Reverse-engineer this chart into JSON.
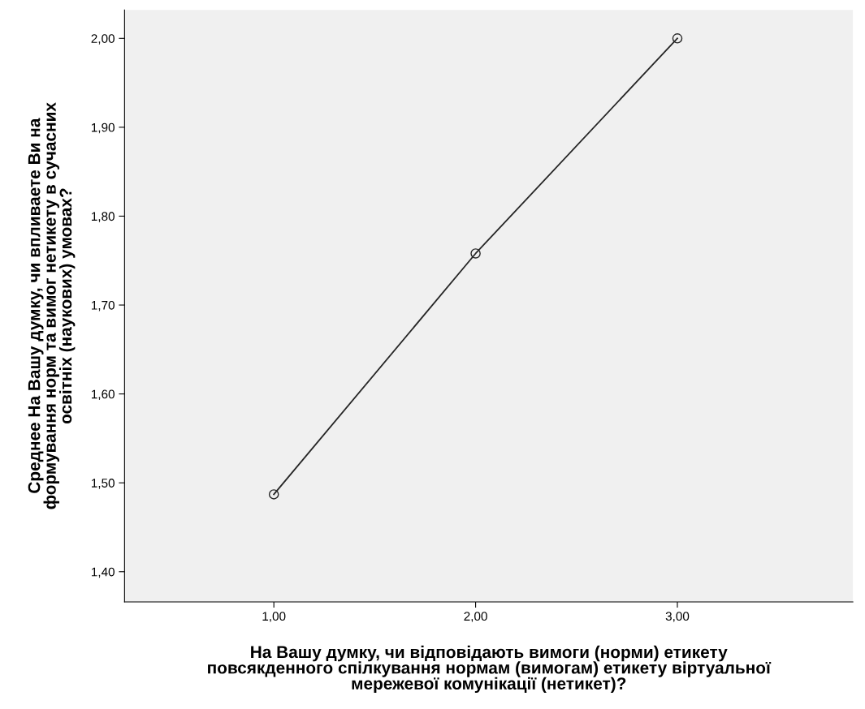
{
  "chart_data": {
    "type": "line",
    "xlabel": "На Вашу думку, чи відповідають вимоги (норми) етикету\nповсякденного спілкування нормам (вимогам) етикету віртуальної\nмережевої комунікації (нетикет)?",
    "ylabel": "Среднее На Вашу думку, чи впливаете Ви на\nформування норм та вимог нетикету в сучасних\nосвітніх (наукових) умовах?",
    "x": [
      1,
      2,
      3
    ],
    "series": [
      {
        "color": "#262626",
        "values": [
          1.487,
          1.758,
          2.0
        ]
      }
    ],
    "marker": "circle",
    "xlim": [
      0.26,
      3.87
    ],
    "xticks": [
      {
        "value": 1,
        "label": "1,00"
      },
      {
        "value": 2,
        "label": "2,00"
      },
      {
        "value": 3,
        "label": "3,00"
      }
    ],
    "ylim": [
      1.366,
      2.032
    ],
    "yticks": [
      {
        "value": 1.4,
        "label": "1,40"
      },
      {
        "value": 1.5,
        "label": "1,50"
      },
      {
        "value": 1.6,
        "label": "1,60"
      },
      {
        "value": 1.7,
        "label": "1,70"
      },
      {
        "value": 1.8,
        "label": "1,80"
      },
      {
        "value": 1.9,
        "label": "1,90"
      },
      {
        "value": 2.0,
        "label": "2,00"
      }
    ],
    "grid": false,
    "legend": false
  }
}
